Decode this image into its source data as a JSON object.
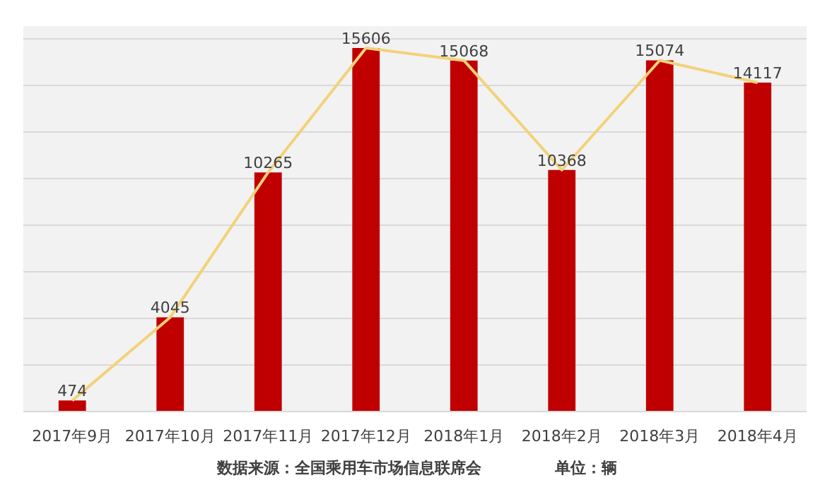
{
  "chart_data": {
    "type": "bar",
    "categories": [
      "2017年9月",
      "2017年10月",
      "2017年11月",
      "2017年12月",
      "2018年1月",
      "2018年2月",
      "2018年3月",
      "2018年4月"
    ],
    "series": [
      {
        "color": "#c00000",
        "values": [
          474,
          4045,
          10265,
          15606,
          15068,
          10368,
          15074,
          14117
        ],
        "value_labels": [
          "474",
          "4045",
          "10265",
          "15606",
          "15068",
          "10368",
          "15074",
          "14117"
        ]
      },
      {
        "type": "line",
        "color": "#f2d27a",
        "values": [
          474,
          4045,
          10265,
          15606,
          15068,
          10368,
          15074,
          14117
        ]
      }
    ],
    "tick_labels": "x",
    "grid": "y",
    "marker": "none",
    "line_style": "solid",
    "annotations": [
      "数据来源：全国乘用车市场信息联席会",
      "单位：辆"
    ]
  }
}
